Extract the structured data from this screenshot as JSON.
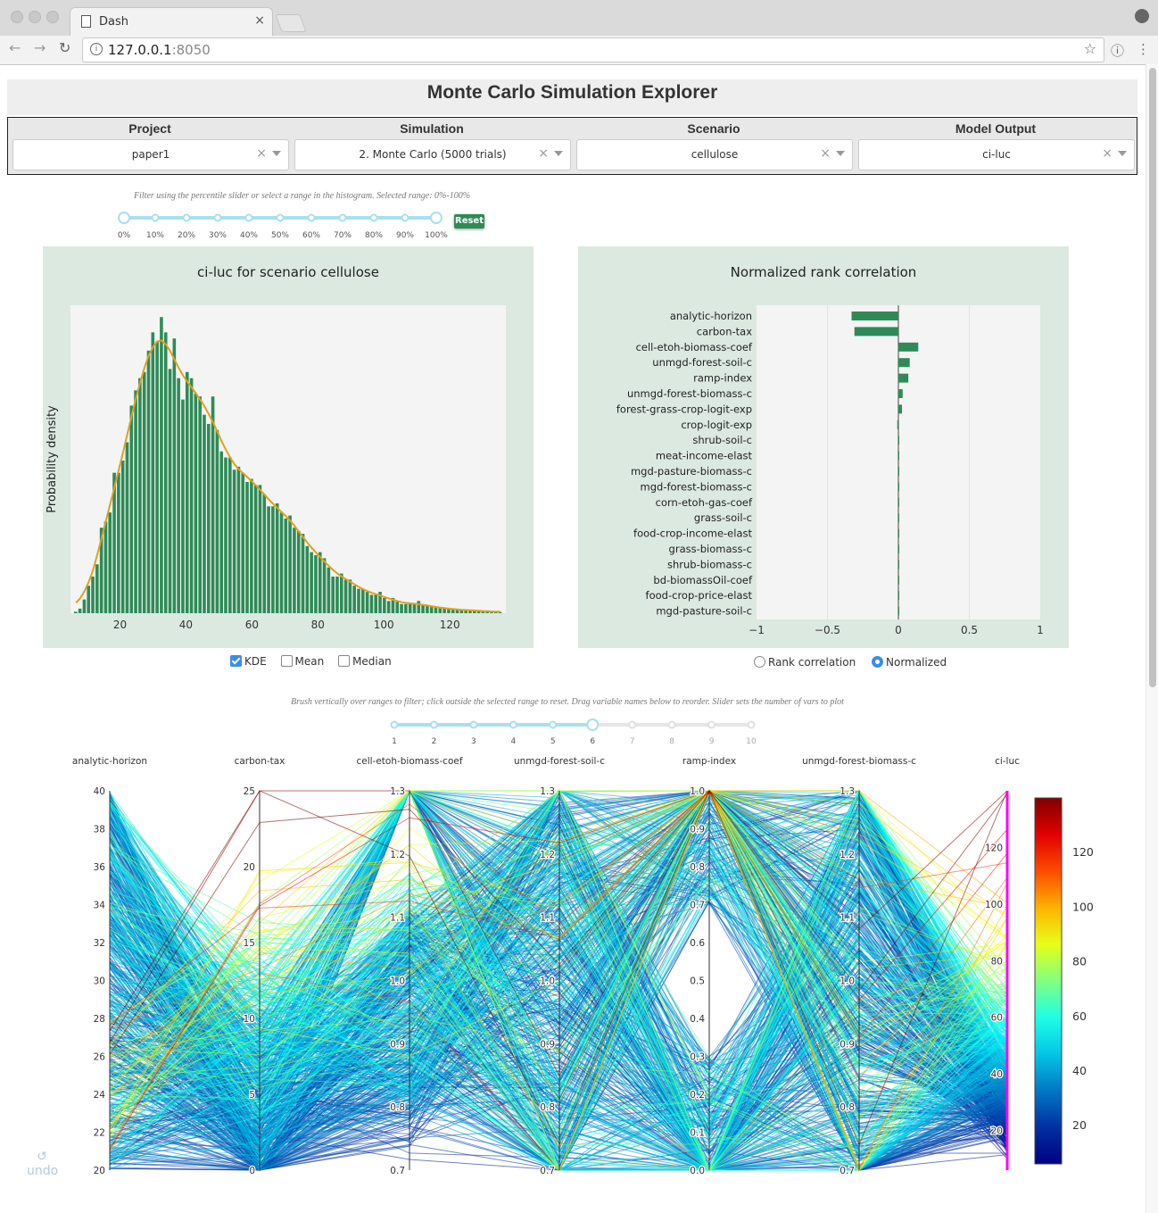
{
  "browser": {
    "tab_title": "Dash",
    "url_host": "127.0.0.1",
    "url_port": ":8050"
  },
  "app": {
    "title": "Monte Carlo Simulation Explorer"
  },
  "selectors": [
    {
      "label": "Project",
      "value": "paper1"
    },
    {
      "label": "Simulation",
      "value": "2. Monte Carlo (5000 trials)"
    },
    {
      "label": "Scenario",
      "value": "cellulose"
    },
    {
      "label": "Model Output",
      "value": "ci-luc"
    }
  ],
  "filter": {
    "hint": "Filter using the percentile slider or select a range in the histogram. Selected range: 0%-100%",
    "ticks": [
      "0%",
      "10%",
      "20%",
      "30%",
      "40%",
      "50%",
      "60%",
      "70%",
      "80%",
      "90%",
      "100%"
    ],
    "range_percent": [
      0,
      100
    ],
    "reset_label": "Reset"
  },
  "histogram": {
    "title": "ci-luc for scenario cellulose",
    "options": [
      {
        "label": "KDE",
        "checked": true
      },
      {
        "label": "Mean",
        "checked": false
      },
      {
        "label": "Median",
        "checked": false
      }
    ]
  },
  "tornado": {
    "title": "Normalized rank correlation",
    "options": [
      {
        "label": "Rank correlation",
        "selected": false
      },
      {
        "label": "Normalized",
        "selected": true
      }
    ]
  },
  "parcoords": {
    "hint": "Brush vertically over ranges to filter; click outside the selected range to reset. Drag variable names below to reorder. Slider sets the number of vars to plot",
    "slider_ticks": [
      "1",
      "2",
      "3",
      "4",
      "5",
      "6",
      "7",
      "8",
      "9",
      "10"
    ],
    "slider_value": 6,
    "undo_label": "undo"
  },
  "colors": {
    "bar": "#2e8b57",
    "kde": "#e0a020",
    "panel_bg": "#dbe9e1",
    "slider": "#a8dff2",
    "brush": "#ff00ff"
  },
  "chart_data": [
    {
      "type": "bar",
      "title": "ci-luc for scenario cellulose",
      "xlabel": "",
      "ylabel": "Probability density",
      "xlim": [
        5,
        137
      ],
      "xticks": [
        20,
        40,
        60,
        80,
        100,
        120
      ],
      "bin_start": 6,
      "bin_width": 1.3,
      "values": [
        0.5,
        1.5,
        4.5,
        9,
        12,
        16,
        28,
        30,
        33,
        46,
        46,
        50,
        56,
        68,
        73,
        77,
        79,
        86,
        92,
        89,
        97,
        92,
        80,
        90,
        77,
        70,
        79,
        77,
        72,
        71,
        65,
        62,
        71,
        60,
        53,
        51,
        51,
        47,
        48,
        46,
        43,
        44,
        42,
        42,
        39,
        35,
        35,
        36,
        33,
        31,
        32,
        28,
        27,
        26,
        22,
        20,
        19,
        20,
        18,
        15,
        12,
        12,
        13,
        11,
        11,
        9,
        8,
        8,
        7,
        6,
        6,
        7,
        5,
        4,
        5,
        4,
        3,
        3,
        3,
        3,
        4,
        2.5,
        2.5,
        2,
        2,
        2,
        1.5,
        1.5,
        1.5,
        1,
        1,
        1,
        1,
        1,
        0.8,
        0.7,
        0.6,
        0.5,
        0.4,
        0.4
      ],
      "kde_label": "KDE"
    },
    {
      "type": "bar",
      "orientation": "horizontal",
      "title": "Normalized rank correlation",
      "xlim": [
        -1,
        1
      ],
      "xticks": [
        "−1",
        "−0.5",
        "0",
        "0.5",
        "1"
      ],
      "categories": [
        "analytic-horizon",
        "carbon-tax",
        "cell-etoh-biomass-coef",
        "unmgd-forest-soil-c",
        "ramp-index",
        "unmgd-forest-biomass-c",
        "forest-grass-crop-logit-exp",
        "crop-logit-exp",
        "shrub-soil-c",
        "meat-income-elast",
        "mgd-pasture-biomass-c",
        "mgd-forest-biomass-c",
        "corn-etoh-gas-coef",
        "grass-soil-c",
        "food-crop-income-elast",
        "grass-biomass-c",
        "shrub-biomass-c",
        "bd-biomassOil-coef",
        "food-crop-price-elast",
        "mgd-pasture-soil-c"
      ],
      "values": [
        -0.33,
        -0.31,
        0.14,
        0.08,
        0.07,
        0.03,
        0.025,
        -0.008,
        0.003,
        0.002,
        0.002,
        0.002,
        0.002,
        0.002,
        0.001,
        0.001,
        0.001,
        0.001,
        0.001,
        0.001
      ]
    },
    {
      "type": "parallel-coordinates",
      "dimensions": [
        {
          "label": "analytic-horizon",
          "range": [
            20,
            40
          ],
          "ticks": [
            "40",
            "38",
            "36",
            "34",
            "32",
            "30",
            "28",
            "26",
            "24",
            "22",
            "20"
          ]
        },
        {
          "label": "carbon-tax",
          "range": [
            0,
            25
          ],
          "ticks": [
            "25",
            "20",
            "15",
            "10",
            "5",
            "0"
          ]
        },
        {
          "label": "cell-etoh-biomass-coef",
          "range": [
            0.7,
            1.3
          ],
          "ticks": [
            "1.3",
            "1.2",
            "1.1",
            "1.0",
            "0.9",
            "0.8",
            "0.7"
          ]
        },
        {
          "label": "unmgd-forest-soil-c",
          "range": [
            0.7,
            1.3
          ],
          "ticks": [
            "1.3",
            "1.2",
            "1.1",
            "1.0",
            "0.9",
            "0.8",
            "0.7"
          ]
        },
        {
          "label": "ramp-index",
          "range": [
            0,
            1
          ],
          "ticks": [
            "1.0",
            "0.9",
            "0.8",
            "0.7",
            "0.6",
            "0.5",
            "0.4",
            "0.3",
            "0.2",
            "0.1",
            "0.0"
          ]
        },
        {
          "label": "unmgd-forest-biomass-c",
          "range": [
            0.7,
            1.3
          ],
          "ticks": [
            "1.3",
            "1.2",
            "1.1",
            "1.0",
            "0.9",
            "0.8",
            "0.7"
          ]
        },
        {
          "label": "ci-luc",
          "range": [
            6,
            140
          ],
          "ticks": [
            "120",
            "100",
            "80",
            "60",
            "40",
            "20"
          ]
        }
      ],
      "colorbar": {
        "ticks": [
          "120",
          "100",
          "80",
          "60",
          "40",
          "20"
        ],
        "range": [
          6,
          140
        ]
      }
    }
  ]
}
